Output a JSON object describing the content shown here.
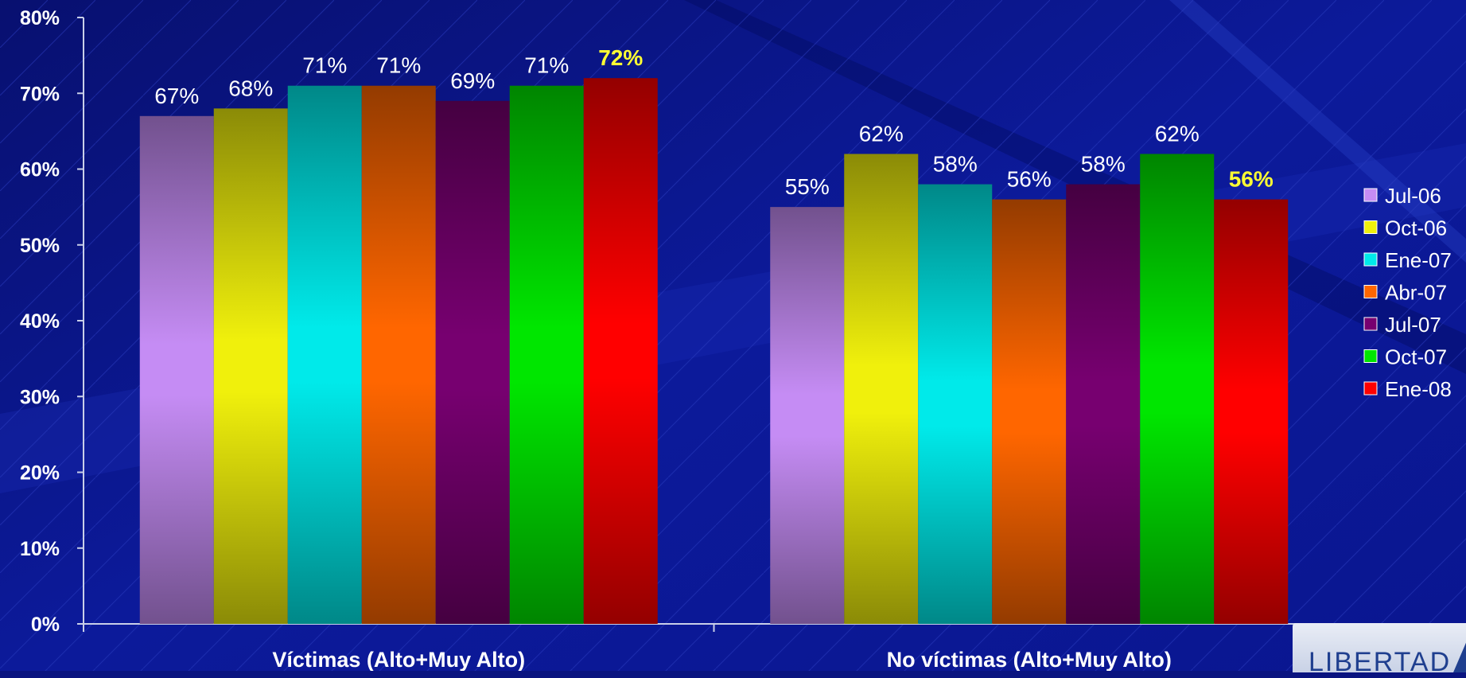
{
  "chart_data": {
    "type": "bar",
    "categories": [
      "Víctimas (Alto+Muy Alto)",
      "No víctimas (Alto+Muy Alto)"
    ],
    "series": [
      {
        "name": "Jul-06",
        "values": [
          67,
          55
        ],
        "color": "#c58cf4"
      },
      {
        "name": "Oct-06",
        "values": [
          68,
          62
        ],
        "color": "#f0f00c"
      },
      {
        "name": "Ene-07",
        "values": [
          71,
          58
        ],
        "color": "#00eaea"
      },
      {
        "name": "Abr-07",
        "values": [
          71,
          56
        ],
        "color": "#ff6600"
      },
      {
        "name": "Jul-07",
        "values": [
          69,
          58
        ],
        "color": "#770070"
      },
      {
        "name": "Oct-07",
        "values": [
          71,
          62
        ],
        "color": "#00e600"
      },
      {
        "name": "Ene-08",
        "values": [
          72,
          56
        ],
        "color": "#ff0000"
      }
    ],
    "data_labels": [
      [
        "67%",
        "55%"
      ],
      [
        "68%",
        "62%"
      ],
      [
        "71%",
        "58%"
      ],
      [
        "71%",
        "56%"
      ],
      [
        "69%",
        "58%"
      ],
      [
        "71%",
        "62%"
      ],
      [
        "72%",
        "56%"
      ]
    ],
    "highlight_series": "Ene-08",
    "highlight_color": "#ffff33",
    "yticks": [
      "0%",
      "10%",
      "20%",
      "30%",
      "40%",
      "50%",
      "60%",
      "70%",
      "80%"
    ],
    "ylim": [
      0,
      80
    ],
    "legend_position": "right",
    "grid": false
  },
  "logo": {
    "text": "LIBERTAD"
  }
}
